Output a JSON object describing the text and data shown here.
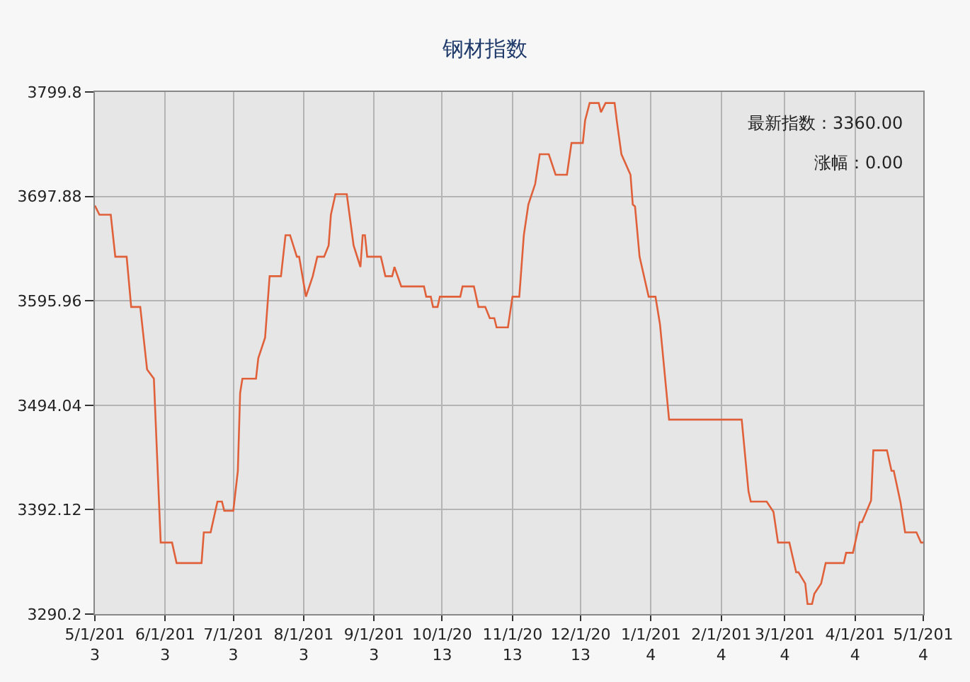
{
  "chart_data": {
    "type": "line",
    "title": "钢材指数",
    "annotations": [
      "最新指数：3360.00",
      "涨幅：0.00"
    ],
    "x": [
      "2013-05-01",
      "2013-05-03",
      "2013-05-08",
      "2013-05-10",
      "2013-05-15",
      "2013-05-17",
      "2013-05-21",
      "2013-05-24",
      "2013-05-27",
      "2013-05-30",
      "2013-06-04",
      "2013-06-06",
      "2013-06-17",
      "2013-06-18",
      "2013-06-21",
      "2013-06-24",
      "2013-06-26",
      "2013-06-27",
      "2013-07-01",
      "2013-07-03",
      "2013-07-04",
      "2013-07-05",
      "2013-07-11",
      "2013-07-12",
      "2013-07-15",
      "2013-07-17",
      "2013-07-22",
      "2013-07-24",
      "2013-07-26",
      "2013-07-29",
      "2013-07-30",
      "2013-08-02",
      "2013-08-05",
      "2013-08-07",
      "2013-08-10",
      "2013-08-12",
      "2013-08-13",
      "2013-08-15",
      "2013-08-20",
      "2013-08-23",
      "2013-08-26",
      "2013-08-27",
      "2013-08-28",
      "2013-08-29",
      "2013-09-04",
      "2013-09-06",
      "2013-09-09",
      "2013-09-10",
      "2013-09-13",
      "2013-09-23",
      "2013-09-24",
      "2013-09-26",
      "2013-09-27",
      "2013-09-29",
      "2013-09-30",
      "2013-10-09",
      "2013-10-10",
      "2013-10-15",
      "2013-10-17",
      "2013-10-20",
      "2013-10-22",
      "2013-10-24",
      "2013-10-25",
      "2013-10-30",
      "2013-11-01",
      "2013-11-04",
      "2013-11-06",
      "2013-11-08",
      "2013-11-11",
      "2013-11-13",
      "2013-11-17",
      "2013-11-20",
      "2013-11-25",
      "2013-11-27",
      "2013-12-02",
      "2013-12-03",
      "2013-12-05",
      "2013-12-09",
      "2013-12-10",
      "2013-12-12",
      "2013-12-16",
      "2013-12-17",
      "2013-12-19",
      "2013-12-23",
      "2013-12-24",
      "2013-12-25",
      "2013-12-27",
      "2013-12-31",
      "2014-01-03",
      "2014-01-05",
      "2014-01-09",
      "2014-02-10",
      "2014-02-13",
      "2014-02-14",
      "2014-02-21",
      "2014-02-24",
      "2014-02-26",
      "2014-03-03",
      "2014-03-06",
      "2014-03-07",
      "2014-03-10",
      "2014-03-11",
      "2014-03-13",
      "2014-03-14",
      "2014-03-17",
      "2014-03-19",
      "2014-03-27",
      "2014-03-28",
      "2014-03-31",
      "2014-04-03",
      "2014-04-04",
      "2014-04-08",
      "2014-04-09",
      "2014-04-15",
      "2014-04-17",
      "2014-04-18",
      "2014-04-21",
      "2014-04-23",
      "2014-04-28",
      "2014-04-30",
      "2014-05-01"
    ],
    "series": [
      {
        "color": "#e0603a",
        "values": [
          3689,
          3680,
          3680,
          3639,
          3639,
          3590,
          3590,
          3529,
          3520,
          3360,
          3360,
          3340,
          3340,
          3370,
          3370,
          3400,
          3400,
          3391,
          3391,
          3430,
          3506,
          3520,
          3520,
          3540,
          3560,
          3620,
          3620,
          3660,
          3660,
          3639,
          3639,
          3600,
          3620,
          3639,
          3639,
          3650,
          3680,
          3700,
          3700,
          3650,
          3629,
          3660,
          3660,
          3639,
          3639,
          3620,
          3620,
          3629,
          3610,
          3610,
          3600,
          3600,
          3590,
          3590,
          3600,
          3600,
          3610,
          3610,
          3590,
          3590,
          3579,
          3579,
          3570,
          3570,
          3600,
          3600,
          3660,
          3690,
          3710,
          3739,
          3739,
          3719,
          3719,
          3750,
          3750,
          3772,
          3789,
          3789,
          3780,
          3789,
          3789,
          3771,
          3739,
          3719,
          3690,
          3688,
          3639,
          3600,
          3600,
          3573,
          3480,
          3480,
          3410,
          3400,
          3400,
          3390,
          3360,
          3360,
          3331,
          3331,
          3320,
          3300,
          3300,
          3310,
          3320,
          3340,
          3340,
          3350,
          3350,
          3380,
          3380,
          3401,
          3450,
          3450,
          3430,
          3430,
          3399,
          3370,
          3370,
          3360,
          3360
        ]
      }
    ],
    "xlim": [
      "2013-05-01",
      "2014-05-01"
    ],
    "xticks": [
      {
        "value": "2013-05-01",
        "label": "5/1/2013"
      },
      {
        "value": "2013-06-01",
        "label": "6/1/2013"
      },
      {
        "value": "2013-07-01",
        "label": "7/1/2013"
      },
      {
        "value": "2013-08-01",
        "label": "8/1/2013"
      },
      {
        "value": "2013-09-01",
        "label": "9/1/2013"
      },
      {
        "value": "2013-10-01",
        "label": "10/1/2013"
      },
      {
        "value": "2013-11-01",
        "label": "11/1/2013"
      },
      {
        "value": "2013-12-01",
        "label": "12/1/2013"
      },
      {
        "value": "2014-01-01",
        "label": "1/1/2014"
      },
      {
        "value": "2014-02-01",
        "label": "2/1/2014"
      },
      {
        "value": "2014-03-01",
        "label": "3/1/2014"
      },
      {
        "value": "2014-04-01",
        "label": "4/1/2014"
      },
      {
        "value": "2014-05-01",
        "label": "5/1/2014"
      }
    ],
    "ylim": [
      3290.2,
      3799.8
    ],
    "yticks": [
      3290.2,
      3392.12,
      3494.04,
      3595.96,
      3697.88,
      3799.8
    ],
    "grid": true,
    "marker": "none",
    "line_style": "solid"
  }
}
